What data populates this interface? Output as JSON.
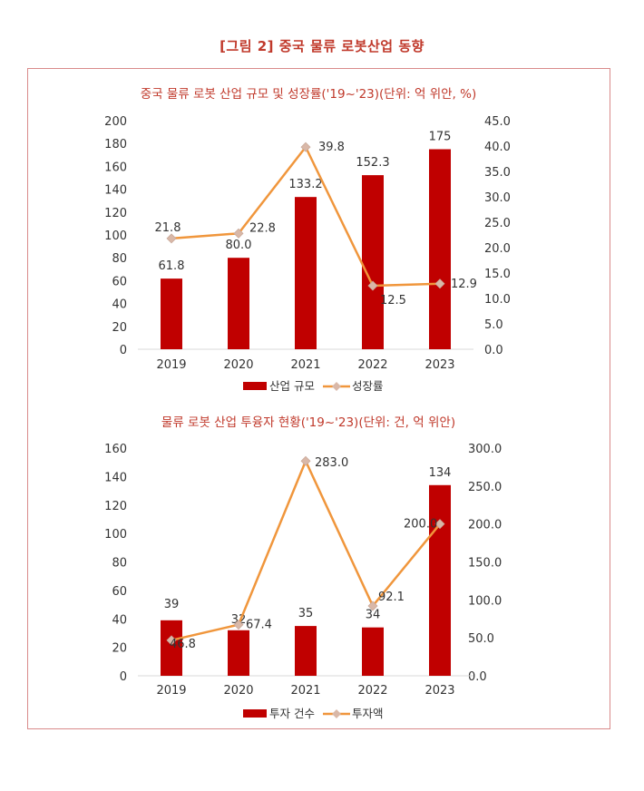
{
  "figure_title": "[그림 2] 중국 물류 로봇산업 동향",
  "colors": {
    "bar": "#c00000",
    "line": "#f0963c",
    "marker": "#d9b8a8",
    "title": "#c0392b"
  },
  "chart_data": [
    {
      "type": "bar",
      "title": "중국 물류 로봇 산업 규모 및 성장률('19~'23)(단위: 억 위안, %)",
      "categories": [
        "2019",
        "2020",
        "2021",
        "2022",
        "2023"
      ],
      "series": [
        {
          "name": "산업 규모",
          "kind": "bar",
          "axis": "left",
          "values": [
            61.8,
            80.0,
            133.2,
            152.3,
            175
          ]
        },
        {
          "name": "성장률",
          "kind": "line",
          "axis": "right",
          "values": [
            21.8,
            22.8,
            39.8,
            12.5,
            12.9
          ]
        }
      ],
      "bar_labels": [
        "61.8",
        "80.0",
        "133.2",
        "152.3",
        "175"
      ],
      "line_labels": [
        "21.8",
        "22.8",
        "39.8",
        "12.5",
        "12.9"
      ],
      "ylim": [
        0,
        200
      ],
      "y_ticks": [
        "0",
        "20",
        "40",
        "60",
        "80",
        "100",
        "120",
        "140",
        "160",
        "180",
        "200"
      ],
      "y2lim": [
        0,
        45
      ],
      "y2_ticks": [
        "0.0",
        "5.0",
        "10.0",
        "15.0",
        "20.0",
        "25.0",
        "30.0",
        "35.0",
        "40.0",
        "45.0"
      ],
      "legend": "bottom"
    },
    {
      "type": "bar",
      "title": "물류 로봇 산업 투융자 현황('19~'23)(단위: 건, 억 위안)",
      "categories": [
        "2019",
        "2020",
        "2021",
        "2022",
        "2023"
      ],
      "series": [
        {
          "name": "투자 건수",
          "kind": "bar",
          "axis": "left",
          "values": [
            39,
            32,
            35,
            34,
            134
          ]
        },
        {
          "name": "투자액",
          "kind": "line",
          "axis": "right",
          "values": [
            46.8,
            67.4,
            283.0,
            92.1,
            200.0
          ]
        }
      ],
      "bar_labels": [
        "39",
        "32",
        "35",
        "34",
        "134"
      ],
      "line_labels": [
        "46.8",
        "67.4",
        "283.0",
        "92.1",
        "200.0"
      ],
      "ylim": [
        0,
        160
      ],
      "y_ticks": [
        "0",
        "20",
        "40",
        "60",
        "80",
        "100",
        "120",
        "140",
        "160"
      ],
      "y2lim": [
        0,
        300
      ],
      "y2_ticks": [
        "0.0",
        "50.0",
        "100.0",
        "150.0",
        "200.0",
        "250.0",
        "300.0"
      ],
      "legend": "bottom"
    }
  ]
}
